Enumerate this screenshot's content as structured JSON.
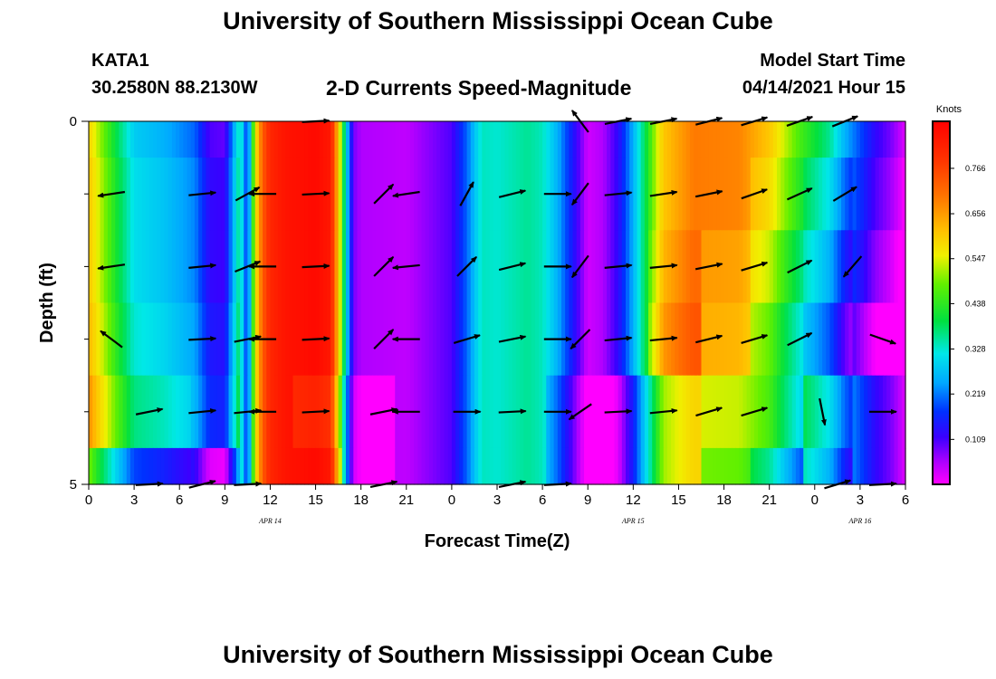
{
  "header": {
    "title": "University of Southern Mississippi Ocean Cube",
    "station_id": "KATA1",
    "station_coords": "30.2580N  88.2130W",
    "chart_title": "2-D Currents Speed-Magnitude",
    "model_start_label": "Model Start Time",
    "model_start_value": "04/14/2021 Hour 15"
  },
  "footer": {
    "title": "University of Southern Mississippi Ocean Cube"
  },
  "chart_data": {
    "type": "heatmap",
    "title": "2-D Currents Speed-Magnitude",
    "xlabel": "Forecast Time(Z)",
    "ylabel": "Depth (ft)",
    "xlim": [
      0,
      54
    ],
    "ylim": [
      0,
      5
    ],
    "x_tick_labels": [
      "0",
      "3",
      "6",
      "9",
      "12",
      "15",
      "18",
      "21",
      "0",
      "3",
      "6",
      "9",
      "12",
      "15",
      "18",
      "21",
      "0",
      "3",
      "6"
    ],
    "date_labels": [
      {
        "label": "APR 14",
        "hour": 12
      },
      {
        "label": "APR 15",
        "hour": 36
      },
      {
        "label": "APR 16",
        "hour": 51
      }
    ],
    "y_tick_labels": [
      {
        "label": "0",
        "depth": 0
      },
      {
        "label": "5",
        "depth": 5
      }
    ],
    "colorbar": {
      "unit_label": "Knots",
      "tick_labels": [
        "0.766",
        "0.656",
        "0.547",
        "0.438",
        "0.328",
        "0.219",
        "0.109"
      ],
      "tick_values": [
        0.766,
        0.656,
        0.547,
        0.438,
        0.328,
        0.219,
        0.109
      ],
      "range": [
        0.0,
        0.88
      ]
    },
    "layer_depths": [
      0,
      1,
      2,
      3,
      4,
      5
    ],
    "row_offsets": [
      [
        0,
        0,
        0,
        0,
        0,
        0,
        0,
        0,
        0,
        0,
        0,
        0,
        0,
        0,
        0,
        0
      ],
      [
        0.02,
        0.02,
        0.02,
        0,
        0,
        0,
        0,
        0,
        0,
        0,
        0,
        0,
        0,
        -0.03,
        -0.05,
        -0.02
      ],
      [
        0.02,
        0.02,
        0.02,
        0,
        0,
        0,
        0,
        0,
        0,
        0,
        0,
        0.02,
        -0.03,
        -0.08,
        -0.1,
        -0.05
      ],
      [
        0.04,
        0.04,
        0.04,
        0,
        0,
        0,
        0,
        0,
        0,
        0,
        0,
        0.05,
        -0.05,
        -0.13,
        -0.16,
        -0.12
      ],
      [
        0.08,
        0.08,
        0.06,
        0,
        -0.05,
        -0.05,
        0,
        0,
        0,
        -0.05,
        -0.1,
        -0.1,
        -0.15,
        -0.15,
        -0.05,
        0
      ],
      [
        -0.1,
        -0.1,
        -0.08,
        0,
        0,
        -0.05,
        0,
        0,
        0,
        -0.05,
        -0.1,
        -0.1,
        -0.2,
        -0.25,
        -0.1,
        0
      ]
    ],
    "speed_profile": [
      {
        "hour": 0,
        "speed": 0.58
      },
      {
        "hour": 1,
        "speed": 0.47
      },
      {
        "hour": 2,
        "speed": 0.37
      },
      {
        "hour": 3,
        "speed": 0.28
      },
      {
        "hour": 5,
        "speed": 0.25
      },
      {
        "hour": 7,
        "speed": 0.2
      },
      {
        "hour": 8,
        "speed": 0.1
      },
      {
        "hour": 9,
        "speed": 0.09
      },
      {
        "hour": 10,
        "speed": 0.35
      },
      {
        "hour": 10.5,
        "speed": 0.15
      },
      {
        "hour": 11,
        "speed": 0.55
      },
      {
        "hour": 11.5,
        "speed": 0.72
      },
      {
        "hour": 12,
        "speed": 0.8
      },
      {
        "hour": 13,
        "speed": 0.84
      },
      {
        "hour": 15,
        "speed": 0.86
      },
      {
        "hour": 16,
        "speed": 0.83
      },
      {
        "hour": 16.5,
        "speed": 0.6
      },
      {
        "hour": 17,
        "speed": 0.3
      },
      {
        "hour": 17.5,
        "speed": 0.08
      },
      {
        "hour": 18,
        "speed": 0.05
      },
      {
        "hour": 21,
        "speed": 0.04
      },
      {
        "hour": 24,
        "speed": 0.1
      },
      {
        "hour": 25,
        "speed": 0.2
      },
      {
        "hour": 26,
        "speed": 0.33
      },
      {
        "hour": 27,
        "speed": 0.32
      },
      {
        "hour": 29,
        "speed": 0.35
      },
      {
        "hour": 30,
        "speed": 0.33
      },
      {
        "hour": 31,
        "speed": 0.25
      },
      {
        "hour": 32,
        "speed": 0.14
      },
      {
        "hour": 33,
        "speed": 0.03
      },
      {
        "hour": 34,
        "speed": 0.05
      },
      {
        "hour": 35,
        "speed": 0.12
      },
      {
        "hour": 36,
        "speed": 0.25
      },
      {
        "hour": 37,
        "speed": 0.42
      },
      {
        "hour": 38,
        "speed": 0.6
      },
      {
        "hour": 40,
        "speed": 0.68
      },
      {
        "hour": 43,
        "speed": 0.67
      },
      {
        "hour": 45,
        "speed": 0.6
      },
      {
        "hour": 46,
        "speed": 0.52
      },
      {
        "hour": 47,
        "speed": 0.45
      },
      {
        "hour": 49,
        "speed": 0.35
      },
      {
        "hour": 50,
        "speed": 0.25
      },
      {
        "hour": 52,
        "speed": 0.12
      },
      {
        "hour": 53,
        "speed": 0.08
      },
      {
        "hour": 54,
        "speed": 0.02
      }
    ],
    "vector_rows": [
      {
        "depth": 0,
        "vectors": [
          {
            "hour": 15,
            "dx": 1,
            "dy": 0.05
          },
          {
            "hour": 32.5,
            "dx": -0.6,
            "dy": 0.8
          },
          {
            "hour": 35,
            "dx": 1,
            "dy": 0.2
          },
          {
            "hour": 38,
            "dx": 1,
            "dy": 0.2
          },
          {
            "hour": 41,
            "dx": 1,
            "dy": 0.25
          },
          {
            "hour": 44,
            "dx": 1,
            "dy": 0.3
          },
          {
            "hour": 47,
            "dx": 1,
            "dy": 0.35
          },
          {
            "hour": 50,
            "dx": 1,
            "dy": 0.4
          }
        ]
      },
      {
        "depth": 1,
        "vectors": [
          {
            "hour": 1.5,
            "dx": -1,
            "dy": -0.15
          },
          {
            "hour": 7.5,
            "dx": 1,
            "dy": 0.1
          },
          {
            "hour": 10.5,
            "dx": 1,
            "dy": 0.55
          },
          {
            "hour": 11.5,
            "dx": -1,
            "dy": 0
          },
          {
            "hour": 15,
            "dx": 1,
            "dy": 0.05
          },
          {
            "hour": 19.5,
            "dx": 0.7,
            "dy": 0.7
          },
          {
            "hour": 21,
            "dx": -1,
            "dy": -0.15
          },
          {
            "hour": 25,
            "dx": 0.5,
            "dy": 0.9
          },
          {
            "hour": 28,
            "dx": 1,
            "dy": 0.25
          },
          {
            "hour": 31,
            "dx": 1,
            "dy": 0
          },
          {
            "hour": 32.5,
            "dx": -0.6,
            "dy": -0.8
          },
          {
            "hour": 35,
            "dx": 1,
            "dy": 0.1
          },
          {
            "hour": 38,
            "dx": 1,
            "dy": 0.15
          },
          {
            "hour": 41,
            "dx": 1,
            "dy": 0.2
          },
          {
            "hour": 44,
            "dx": 1,
            "dy": 0.35
          },
          {
            "hour": 47,
            "dx": 1,
            "dy": 0.45
          },
          {
            "hour": 50,
            "dx": 1,
            "dy": 0.6
          }
        ]
      },
      {
        "depth": 2,
        "vectors": [
          {
            "hour": 1.5,
            "dx": -1,
            "dy": -0.15
          },
          {
            "hour": 7.5,
            "dx": 1,
            "dy": 0.1
          },
          {
            "hour": 10.5,
            "dx": 1,
            "dy": 0.4
          },
          {
            "hour": 11.5,
            "dx": -1,
            "dy": 0
          },
          {
            "hour": 15,
            "dx": 1,
            "dy": 0.05
          },
          {
            "hour": 19.5,
            "dx": 0.7,
            "dy": 0.7
          },
          {
            "hour": 21,
            "dx": -1,
            "dy": -0.1
          },
          {
            "hour": 25,
            "dx": 0.7,
            "dy": 0.7
          },
          {
            "hour": 28,
            "dx": 1,
            "dy": 0.25
          },
          {
            "hour": 31,
            "dx": 1,
            "dy": 0
          },
          {
            "hour": 32.5,
            "dx": -0.6,
            "dy": -0.8
          },
          {
            "hour": 35,
            "dx": 1,
            "dy": 0.1
          },
          {
            "hour": 38,
            "dx": 1,
            "dy": 0.1
          },
          {
            "hour": 41,
            "dx": 1,
            "dy": 0.2
          },
          {
            "hour": 44,
            "dx": 1,
            "dy": 0.3
          },
          {
            "hour": 47,
            "dx": 1,
            "dy": 0.5
          },
          {
            "hour": 50.5,
            "dx": -0.65,
            "dy": -0.75
          }
        ]
      },
      {
        "depth": 3,
        "vectors": [
          {
            "hour": 1.5,
            "dx": -0.8,
            "dy": 0.6
          },
          {
            "hour": 7.5,
            "dx": 1,
            "dy": 0.05
          },
          {
            "hour": 10.5,
            "dx": 1,
            "dy": 0.2
          },
          {
            "hour": 11.5,
            "dx": -1,
            "dy": 0
          },
          {
            "hour": 15,
            "dx": 1,
            "dy": 0.05
          },
          {
            "hour": 19.5,
            "dx": 0.7,
            "dy": 0.7
          },
          {
            "hour": 21,
            "dx": -1,
            "dy": 0
          },
          {
            "hour": 25,
            "dx": 1,
            "dy": 0.3
          },
          {
            "hour": 28,
            "dx": 1,
            "dy": 0.2
          },
          {
            "hour": 31,
            "dx": 1,
            "dy": 0
          },
          {
            "hour": 32.5,
            "dx": -0.7,
            "dy": -0.7
          },
          {
            "hour": 35,
            "dx": 1,
            "dy": 0.1
          },
          {
            "hour": 38,
            "dx": 1,
            "dy": 0.1
          },
          {
            "hour": 41,
            "dx": 1,
            "dy": 0.25
          },
          {
            "hour": 44,
            "dx": 1,
            "dy": 0.3
          },
          {
            "hour": 47,
            "dx": 1,
            "dy": 0.5
          },
          {
            "hour": 52.5,
            "dx": 1,
            "dy": -0.35
          }
        ]
      },
      {
        "depth": 4,
        "vectors": [
          {
            "hour": 4,
            "dx": 1,
            "dy": 0.2
          },
          {
            "hour": 7.5,
            "dx": 1,
            "dy": 0.1
          },
          {
            "hour": 10.5,
            "dx": 1,
            "dy": 0.1
          },
          {
            "hour": 11.5,
            "dx": -1,
            "dy": 0
          },
          {
            "hour": 15,
            "dx": 1,
            "dy": 0.05
          },
          {
            "hour": 19.5,
            "dx": 1,
            "dy": 0.2
          },
          {
            "hour": 21,
            "dx": -1,
            "dy": 0
          },
          {
            "hour": 25,
            "dx": 1,
            "dy": 0
          },
          {
            "hour": 28,
            "dx": 1,
            "dy": 0.05
          },
          {
            "hour": 31,
            "dx": 1,
            "dy": 0
          },
          {
            "hour": 32.5,
            "dx": -0.8,
            "dy": -0.55
          },
          {
            "hour": 35,
            "dx": 1,
            "dy": 0.05
          },
          {
            "hour": 38,
            "dx": 1,
            "dy": 0.1
          },
          {
            "hour": 41,
            "dx": 1,
            "dy": 0.3
          },
          {
            "hour": 44,
            "dx": 1,
            "dy": 0.3
          },
          {
            "hour": 48.5,
            "dx": 0.2,
            "dy": -1
          },
          {
            "hour": 52.5,
            "dx": 1,
            "dy": 0
          }
        ]
      },
      {
        "depth": 5,
        "vectors": [
          {
            "hour": 4,
            "dx": 1,
            "dy": 0.05
          },
          {
            "hour": 7.5,
            "dx": 1,
            "dy": 0.25
          },
          {
            "hour": 10.5,
            "dx": 1,
            "dy": 0.05
          },
          {
            "hour": 19.5,
            "dx": 1,
            "dy": 0.2
          },
          {
            "hour": 28,
            "dx": 1,
            "dy": 0.2
          },
          {
            "hour": 31,
            "dx": 1,
            "dy": 0.05
          },
          {
            "hour": 49.5,
            "dx": 1,
            "dy": 0.3
          },
          {
            "hour": 52.5,
            "dx": 1,
            "dy": 0.05
          }
        ]
      }
    ]
  }
}
